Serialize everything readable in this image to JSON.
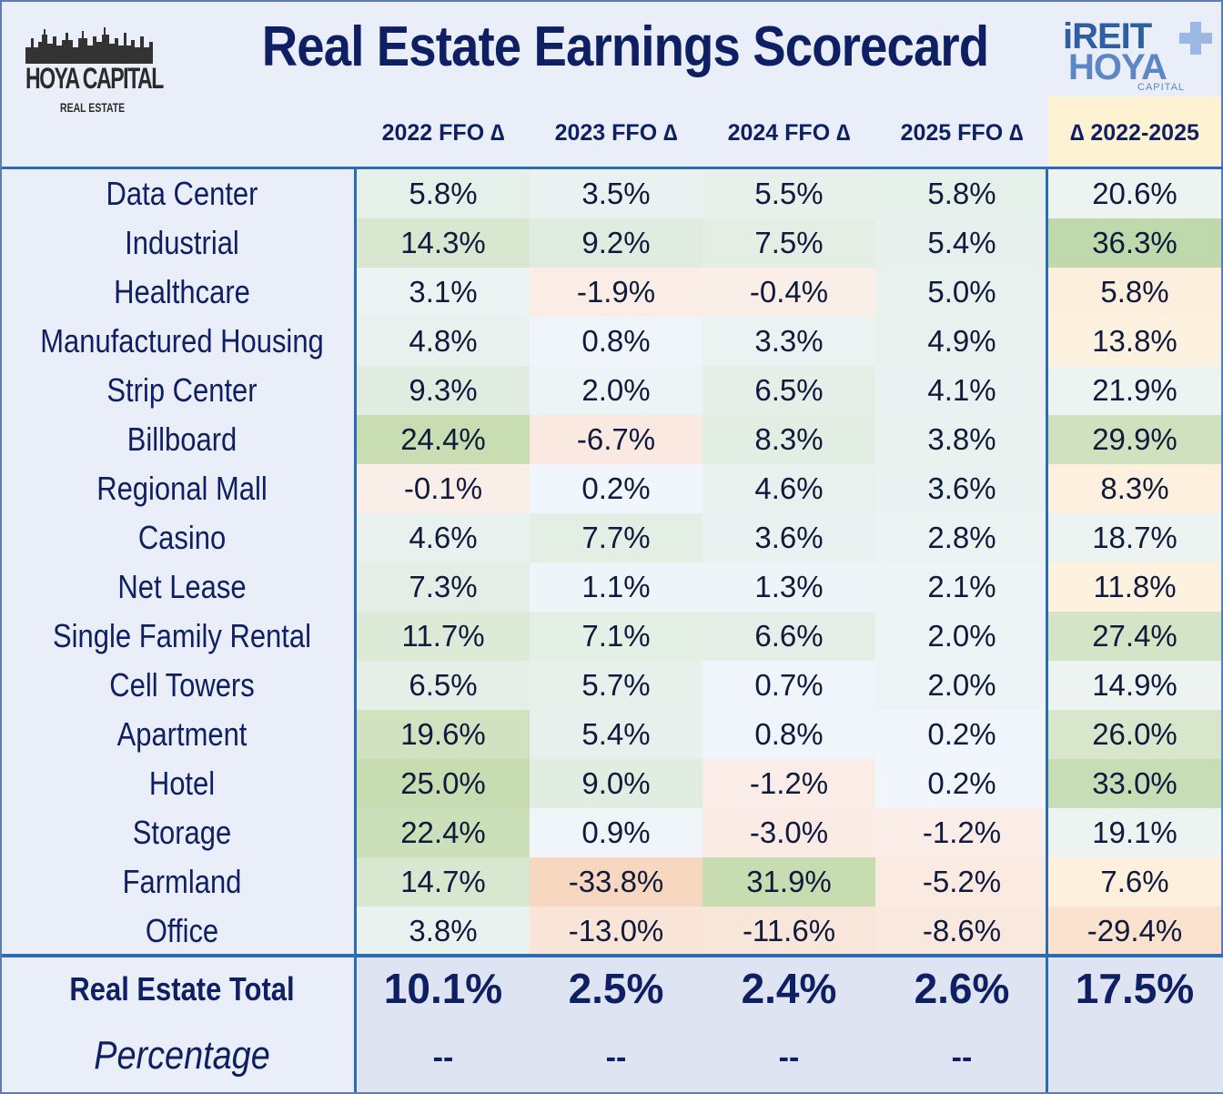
{
  "header": {
    "title": "Real Estate Earnings Scorecard",
    "logo_left": {
      "brand": "HOYA CAPITAL",
      "sub": "REAL ESTATE"
    },
    "logo_right": {
      "top": "iREIT",
      "middle": "HOYA",
      "bottom": "CAPITAL"
    }
  },
  "colors": {
    "title": "#0f1f63",
    "border": "#2d6bb3",
    "positive_strong": "#c7dcb0",
    "negative_strong": "#f6d8c4",
    "total_header_bg": "#fdf3d3"
  },
  "chart_data": {
    "type": "table",
    "title": "Real Estate Earnings Scorecard",
    "columns": [
      "2022 FFO ∆",
      "2023 FFO ∆",
      "2024 FFO ∆",
      "2025 FFO ∆",
      "∆ 2022-2025"
    ],
    "rows": [
      {
        "sector": "Data Center",
        "values": [
          5.8,
          3.5,
          5.5,
          5.8,
          20.6
        ],
        "labels": [
          "5.8%",
          "3.5%",
          "5.5%",
          "5.8%",
          "20.6%"
        ]
      },
      {
        "sector": "Industrial",
        "values": [
          14.3,
          9.2,
          7.5,
          5.4,
          36.3
        ],
        "labels": [
          "14.3%",
          "9.2%",
          "7.5%",
          "5.4%",
          "36.3%"
        ]
      },
      {
        "sector": "Healthcare",
        "values": [
          3.1,
          -1.9,
          -0.4,
          5.0,
          5.8
        ],
        "labels": [
          "3.1%",
          "-1.9%",
          "-0.4%",
          "5.0%",
          "5.8%"
        ]
      },
      {
        "sector": "Manufactured Housing",
        "values": [
          4.8,
          0.8,
          3.3,
          4.9,
          13.8
        ],
        "labels": [
          "4.8%",
          "0.8%",
          "3.3%",
          "4.9%",
          "13.8%"
        ]
      },
      {
        "sector": "Strip Center",
        "values": [
          9.3,
          2.0,
          6.5,
          4.1,
          21.9
        ],
        "labels": [
          "9.3%",
          "2.0%",
          "6.5%",
          "4.1%",
          "21.9%"
        ]
      },
      {
        "sector": "Billboard",
        "values": [
          24.4,
          -6.7,
          8.3,
          3.8,
          29.9
        ],
        "labels": [
          "24.4%",
          "-6.7%",
          "8.3%",
          "3.8%",
          "29.9%"
        ]
      },
      {
        "sector": "Regional Mall",
        "values": [
          -0.1,
          0.2,
          4.6,
          3.6,
          8.3
        ],
        "labels": [
          "-0.1%",
          "0.2%",
          "4.6%",
          "3.6%",
          "8.3%"
        ]
      },
      {
        "sector": "Casino",
        "values": [
          4.6,
          7.7,
          3.6,
          2.8,
          18.7
        ],
        "labels": [
          "4.6%",
          "7.7%",
          "3.6%",
          "2.8%",
          "18.7%"
        ]
      },
      {
        "sector": "Net Lease",
        "values": [
          7.3,
          1.1,
          1.3,
          2.1,
          11.8
        ],
        "labels": [
          "7.3%",
          "1.1%",
          "1.3%",
          "2.1%",
          "11.8%"
        ]
      },
      {
        "sector": "Single Family Rental",
        "values": [
          11.7,
          7.1,
          6.6,
          2.0,
          27.4
        ],
        "labels": [
          "11.7%",
          "7.1%",
          "6.6%",
          "2.0%",
          "27.4%"
        ]
      },
      {
        "sector": "Cell Towers",
        "values": [
          6.5,
          5.7,
          0.7,
          2.0,
          14.9
        ],
        "labels": [
          "6.5%",
          "5.7%",
          "0.7%",
          "2.0%",
          "14.9%"
        ]
      },
      {
        "sector": "Apartment",
        "values": [
          19.6,
          5.4,
          0.8,
          0.2,
          26.0
        ],
        "labels": [
          "19.6%",
          "5.4%",
          "0.8%",
          "0.2%",
          "26.0%"
        ]
      },
      {
        "sector": "Hotel",
        "values": [
          25.0,
          9.0,
          -1.2,
          0.2,
          33.0
        ],
        "labels": [
          "25.0%",
          "9.0%",
          "-1.2%",
          "0.2%",
          "33.0%"
        ]
      },
      {
        "sector": "Storage",
        "values": [
          22.4,
          0.9,
          -3.0,
          -1.2,
          19.1
        ],
        "labels": [
          "22.4%",
          "0.9%",
          "-3.0%",
          "-1.2%",
          "19.1%"
        ]
      },
      {
        "sector": "Farmland",
        "values": [
          14.7,
          -33.8,
          31.9,
          -5.2,
          7.6
        ],
        "labels": [
          "14.7%",
          "-33.8%",
          "31.9%",
          "-5.2%",
          "7.6%"
        ]
      },
      {
        "sector": "Office",
        "values": [
          3.8,
          -13.0,
          -11.6,
          -8.6,
          -29.4
        ],
        "labels": [
          "3.8%",
          "-13.0%",
          "-11.6%",
          "-8.6%",
          "-29.4%"
        ]
      }
    ],
    "totals": {
      "label": "Real Estate Total",
      "values": [
        10.1,
        2.5,
        2.4,
        2.6,
        17.5
      ],
      "labels": [
        "10.1%",
        "2.5%",
        "2.4%",
        "2.6%",
        "17.5%"
      ]
    },
    "percentage": {
      "label": "Percentage",
      "labels": [
        "--",
        "--",
        "--",
        "--",
        ""
      ]
    }
  }
}
